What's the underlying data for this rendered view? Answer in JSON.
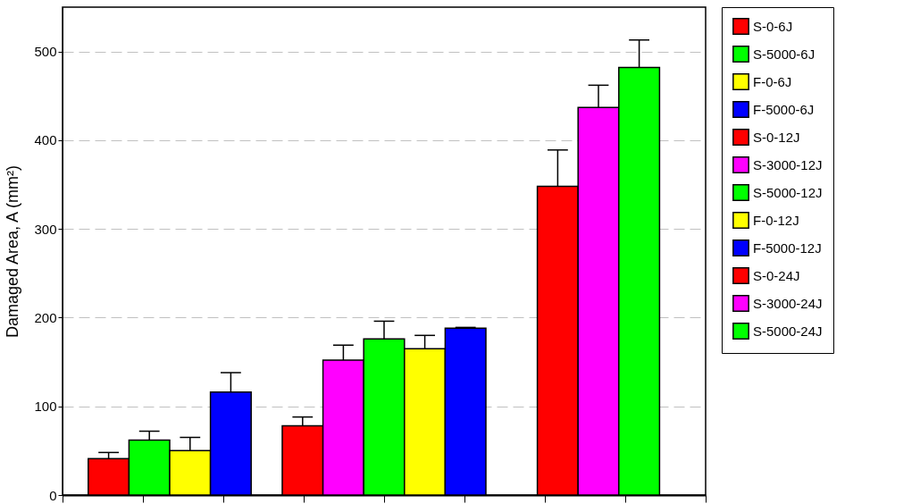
{
  "chart_data": {
    "type": "bar",
    "ylabel": "Damaged Area, A (mm²)",
    "categories": [
      null,
      null,
      null
    ],
    "ylim": [
      0,
      550
    ],
    "yticks": [
      0,
      100,
      200,
      300,
      400,
      500
    ],
    "grid": "y",
    "legend": "right",
    "tick_labels": "y",
    "series": [
      {
        "name": "S-0-6J",
        "color": "#ff0000",
        "values": [
          41,
          null,
          null
        ],
        "errors": [
          [
            41,
            48
          ],
          null,
          null
        ]
      },
      {
        "name": "S-5000-6J",
        "color": "#00ff00",
        "values": [
          62,
          null,
          null
        ],
        "errors": [
          [
            62,
            72
          ],
          null,
          null
        ]
      },
      {
        "name": "F-0-6J",
        "color": "#ffff00",
        "values": [
          50,
          null,
          null
        ],
        "errors": [
          [
            50,
            65
          ],
          null,
          null
        ]
      },
      {
        "name": "F-5000-6J",
        "color": "#0000ff",
        "values": [
          116,
          null,
          null
        ],
        "errors": [
          [
            116,
            138
          ],
          null,
          null
        ]
      },
      {
        "name": "S-0-12J",
        "color": "#ff0000",
        "values": [
          null,
          78,
          null
        ],
        "errors": [
          null,
          [
            78,
            88
          ],
          null
        ]
      },
      {
        "name": "S-3000-12J",
        "color": "#ff00ff",
        "values": [
          null,
          152,
          null
        ],
        "errors": [
          null,
          [
            152,
            169
          ],
          null
        ]
      },
      {
        "name": "S-5000-12J",
        "color": "#00ff00",
        "values": [
          null,
          176,
          null
        ],
        "errors": [
          null,
          [
            176,
            196
          ],
          null
        ]
      },
      {
        "name": "F-0-12J",
        "color": "#ffff00",
        "values": [
          null,
          165,
          null
        ],
        "errors": [
          null,
          [
            165,
            180
          ],
          null
        ]
      },
      {
        "name": "F-5000-12J",
        "color": "#0000ff",
        "values": [
          null,
          188,
          null
        ],
        "errors": [
          null,
          [
            188,
            189
          ],
          null
        ]
      },
      {
        "name": "S-0-24J",
        "color": "#ff0000",
        "values": [
          null,
          null,
          348
        ],
        "errors": [
          null,
          null,
          [
            348,
            389
          ]
        ]
      },
      {
        "name": "S-3000-24J",
        "color": "#ff00ff",
        "values": [
          null,
          null,
          437
        ],
        "errors": [
          null,
          null,
          [
            437,
            462
          ]
        ]
      },
      {
        "name": "S-5000-24J",
        "color": "#00ff00",
        "values": [
          null,
          null,
          482
        ],
        "errors": [
          null,
          null,
          [
            482,
            513
          ]
        ]
      }
    ]
  }
}
